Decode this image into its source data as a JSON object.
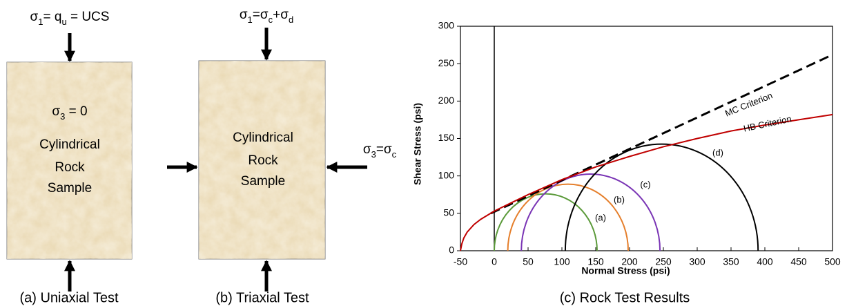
{
  "panels": [
    {
      "top_label": [
        {
          "text": "σ"
        },
        {
          "text": "1",
          "sub": true
        },
        {
          "text": "= q"
        },
        {
          "text": "u",
          "sub": true
        },
        {
          "text": " = UCS"
        }
      ],
      "lines": [
        [
          {
            "text": "σ"
          },
          {
            "text": "3",
            "sub": true
          },
          {
            "text": " = 0"
          }
        ],
        [
          {
            "text": "Cylindrical"
          }
        ],
        [
          {
            "text": "Rock"
          }
        ],
        [
          {
            "text": "Sample"
          }
        ]
      ],
      "caption": "(a) Uniaxial Test"
    },
    {
      "top_label": [
        {
          "text": "σ"
        },
        {
          "text": "1",
          "sub": true
        },
        {
          "text": "=σ"
        },
        {
          "text": "c",
          "sub": true
        },
        {
          "text": "+σ"
        },
        {
          "text": "d",
          "sub": true
        }
      ],
      "lines": [
        [
          {
            "text": "Cylindrical"
          }
        ],
        [
          {
            "text": "Rock"
          }
        ],
        [
          {
            "text": "Sample"
          }
        ]
      ],
      "side_label": [
        {
          "text": "σ"
        },
        {
          "text": "3",
          "sub": true
        },
        {
          "text": "=σ"
        },
        {
          "text": "c",
          "sub": true
        }
      ],
      "caption": "(b) Triaxial Test"
    }
  ],
  "chart_data": {
    "type": "mohr",
    "caption": "(c) Rock Test Results",
    "x_label": "Normal Stress (psi)",
    "y_label": "Shear Stress (psi)",
    "xlim": [
      -50,
      500
    ],
    "xticks": [
      -50,
      0,
      50,
      100,
      150,
      200,
      250,
      300,
      350,
      400,
      450,
      500
    ],
    "ylim": [
      0,
      300
    ],
    "yticks": [
      0,
      50,
      100,
      150,
      200,
      250,
      300
    ],
    "series": [
      {
        "name": "(a)",
        "color": "#5b9a3a",
        "values": [
          0,
          152
        ]
      },
      {
        "name": "(b)",
        "color": "#e57f2c",
        "values": [
          20,
          198
        ]
      },
      {
        "name": "(c)",
        "color": "#7a35b5",
        "values": [
          40,
          245
        ]
      },
      {
        "name": "(d)",
        "color": "#000000",
        "values": [
          105,
          390
        ]
      }
    ],
    "criteria": [
      {
        "name": "MC Criterion",
        "color": "#000000",
        "dashed": true,
        "x": [
          -5,
          500
        ],
        "values": [
          50,
          262
        ]
      },
      {
        "name": "HB Criterion",
        "color": "#c00000",
        "dashed": false,
        "x": [
          -50,
          -48,
          -45,
          -40,
          -30,
          -20,
          0,
          25,
          50,
          100,
          150,
          200,
          250,
          300,
          350,
          400,
          450,
          500
        ],
        "values": [
          0,
          9,
          17,
          25,
          35,
          42,
          53,
          64,
          75,
          95,
          112,
          126,
          139,
          150,
          160,
          168,
          175,
          182
        ]
      }
    ]
  }
}
